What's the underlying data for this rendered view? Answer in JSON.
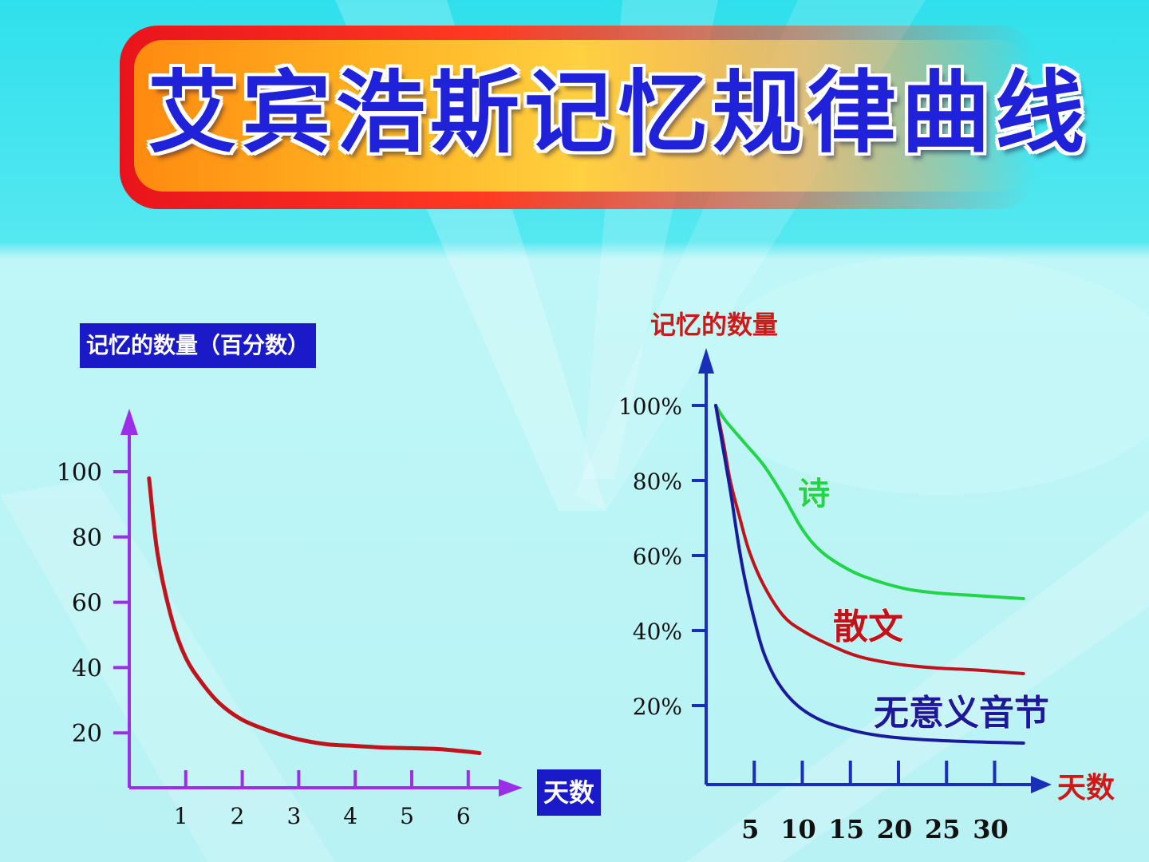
{
  "title": "艾宾浩斯记忆规律曲线",
  "colors": {
    "title": "#1f22d8",
    "left_axis": "#9b2fe8",
    "left_curve": "#c0141c",
    "right_axis": "#1a2fb8",
    "poetry": "#22d44a",
    "prose": "#c0141c",
    "nonsense": "#1a1a9c"
  },
  "chart_data": [
    {
      "type": "line",
      "title": "",
      "ylabel": "记忆的数量（百分数）",
      "xlabel": "天数",
      "x_ticks": [
        "1",
        "2",
        "3",
        "4",
        "5",
        "6"
      ],
      "y_ticks": [
        "100",
        "80",
        "60",
        "40",
        "20"
      ],
      "xlim": [
        0,
        7
      ],
      "ylim": [
        0,
        110
      ],
      "series": [
        {
          "x": [
            0.35,
            0.5,
            0.75,
            1.0,
            1.3,
            1.6,
            2.0,
            2.5,
            3.0,
            3.5,
            4.0,
            4.5,
            5.0,
            5.5,
            6.0,
            6.2
          ],
          "y": [
            98,
            75,
            55,
            43,
            35,
            29,
            24,
            20.5,
            18,
            16.5,
            16,
            15.5,
            15.3,
            15,
            14.2,
            13.8
          ]
        }
      ]
    },
    {
      "type": "line",
      "title": "",
      "ylabel": "记忆的数量",
      "xlabel": "天数",
      "x_ticks": [
        "5",
        "10",
        "15",
        "20",
        "25",
        "30"
      ],
      "y_ticks": [
        "100%",
        "80%",
        "60%",
        "40%",
        "20%"
      ],
      "xlim": [
        0,
        35
      ],
      "ylim": [
        0,
        110
      ],
      "series": [
        {
          "name": "诗",
          "x": [
            1,
            2,
            4,
            6,
            8,
            10,
            12,
            15,
            18,
            21,
            24,
            27,
            30,
            33
          ],
          "y": [
            100,
            96,
            90,
            84,
            76,
            67,
            61,
            56,
            53,
            51,
            50,
            49.5,
            49,
            48.5
          ]
        },
        {
          "name": "散文",
          "x": [
            1,
            1.8,
            2.5,
            3.5,
            4.5,
            6,
            8,
            10,
            13,
            16,
            20,
            24,
            28,
            33
          ],
          "y": [
            100,
            90,
            80,
            70,
            61,
            52,
            44,
            40,
            36,
            33,
            31,
            30,
            29.5,
            28.5
          ]
        },
        {
          "name": "无意义音节",
          "x": [
            1,
            1.8,
            2.6,
            3.3,
            4.0,
            5.0,
            6.0,
            7.5,
            9.5,
            12,
            15,
            18,
            22,
            26,
            30,
            33
          ],
          "y": [
            100,
            88,
            76,
            64,
            54,
            43,
            34,
            26,
            20,
            16,
            13.5,
            12,
            11,
            10.5,
            10.2,
            10
          ]
        }
      ]
    }
  ]
}
